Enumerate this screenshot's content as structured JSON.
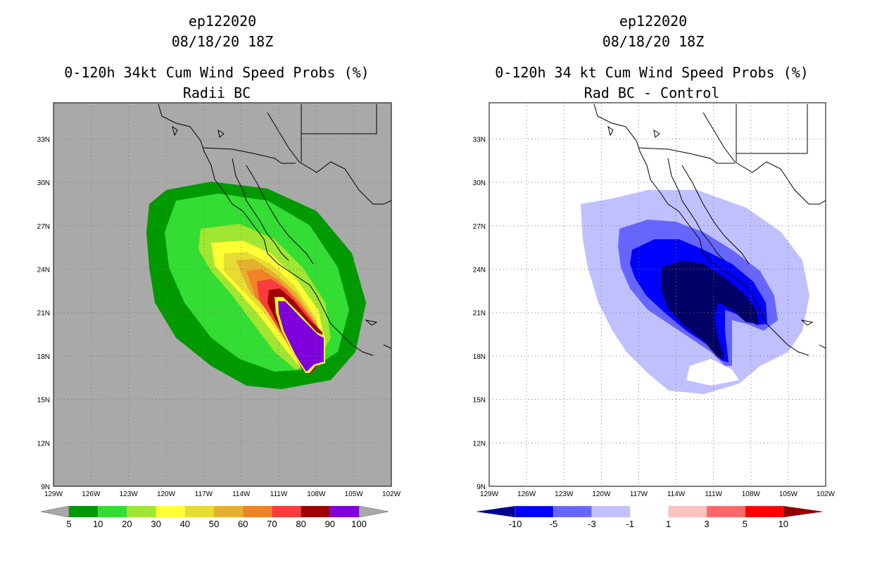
{
  "left_panel": {
    "title_line1": "ep122020",
    "title_line2": "08/18/20 18Z",
    "title_line3": "0-120h 34kt Cum Wind Speed Probs (%)",
    "title_line4": "Radii BC",
    "background_color": "#a9a9a9",
    "colorbar": {
      "colors": [
        "#009900",
        "#33dd33",
        "#a0e632",
        "#ffff33",
        "#e6dc32",
        "#e6af2d",
        "#f08228",
        "#fa3c3c",
        "#a00000",
        "#8000dd"
      ],
      "labels": [
        "5",
        "10",
        "20",
        "30",
        "40",
        "50",
        "60",
        "70",
        "80",
        "90",
        "100"
      ]
    }
  },
  "right_panel": {
    "title_line1": "ep122020",
    "title_line2": "08/18/20 18Z",
    "title_line3": "0-120h 34 kt Cum Wind Speed Probs (%)",
    "title_line4": "Rad BC - Control",
    "background_color": "#ffffff",
    "colorbar": {
      "colors": [
        "#0000ff",
        "#6666ff",
        "#c0c0ff",
        "#ffffff",
        "#ffc0c0",
        "#ff6666",
        "#ff0000"
      ],
      "left_arrow_color": "#000090",
      "right_arrow_color": "#900000",
      "labels": [
        "-10",
        "-5",
        "-3",
        "-1",
        "1",
        "3",
        "5",
        "10"
      ]
    }
  },
  "axes": {
    "lat_labels": [
      "33N",
      "30N",
      "27N",
      "24N",
      "21N",
      "18N",
      "15N",
      "12N",
      "9N"
    ],
    "lon_labels": [
      "129W",
      "126W",
      "123W",
      "120W",
      "117W",
      "114W",
      "111W",
      "108W",
      "105W",
      "102W"
    ]
  },
  "map_data": {
    "lat_range": [
      9,
      35.5
    ],
    "lon_range": [
      -129,
      -102
    ],
    "left_field_levels": [
      5,
      10,
      20,
      30,
      40,
      50,
      60,
      70,
      80,
      90,
      100
    ],
    "right_field_levels": [
      -10,
      -5,
      -3,
      -1,
      1,
      3,
      5,
      10
    ]
  }
}
